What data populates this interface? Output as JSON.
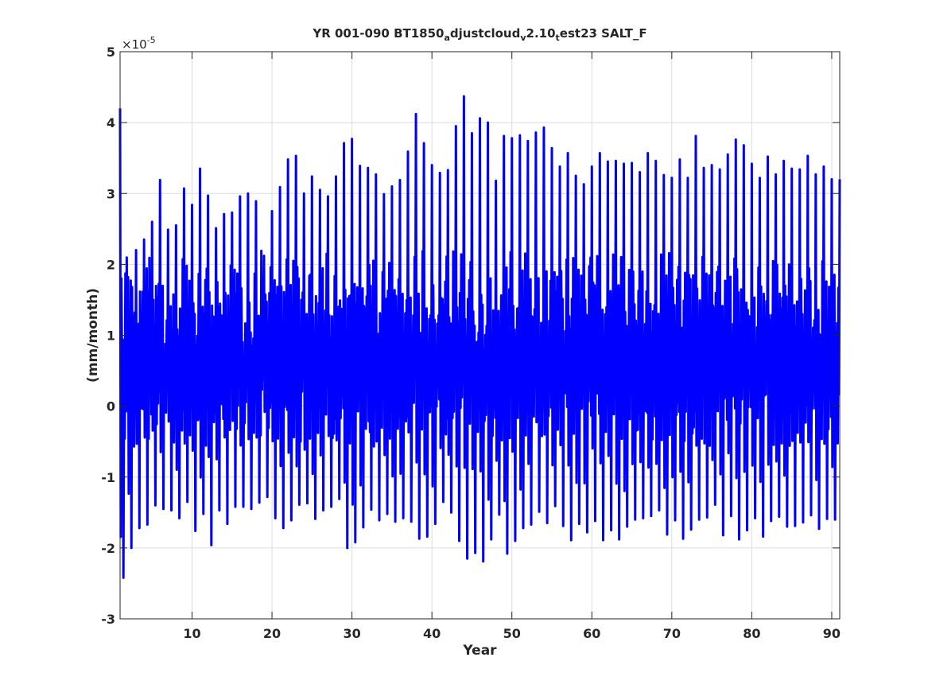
{
  "chart_data": {
    "type": "line",
    "title_parts": [
      {
        "text": "YR 001-090 BT1850",
        "sub": false
      },
      {
        "text": "a",
        "sub": true
      },
      {
        "text": "djustcloud",
        "sub": false
      },
      {
        "text": "v",
        "sub": true
      },
      {
        "text": "2.10",
        "sub": false
      },
      {
        "text": "t",
        "sub": true
      },
      {
        "text": "est23 SALT_F",
        "sub": false
      }
    ],
    "xlabel": "Year",
    "ylabel": "(mm/month)",
    "y_exponent_base": "×10",
    "y_exponent_power": "-5",
    "xlim": [
      1,
      91
    ],
    "ylim": [
      -3,
      5
    ],
    "xticks": [
      10,
      20,
      30,
      40,
      50,
      60,
      70,
      80,
      90
    ],
    "xtick_labels": [
      "10",
      "20",
      "30",
      "40",
      "50",
      "60",
      "70",
      "80",
      "90"
    ],
    "yticks": [
      -3,
      -2,
      -1,
      0,
      1,
      2,
      3,
      4,
      5
    ],
    "ytick_labels": [
      "-3",
      "-2",
      "-1",
      "0",
      "1",
      "2",
      "3",
      "4",
      "5"
    ],
    "grid": true,
    "series": [
      {
        "color": "#0000ff",
        "samples_per_year": 12,
        "annual_max": [
          4.2,
          1.82,
          2.2,
          2.35,
          2.6,
          3.19,
          2.49,
          2.55,
          3.07,
          2.84,
          3.35,
          2.97,
          2.51,
          2.71,
          2.73,
          2.96,
          3.0,
          2.89,
          2.12,
          2.75,
          3.09,
          3.48,
          3.53,
          3.0,
          3.24,
          3.05,
          2.96,
          3.24,
          3.71,
          3.77,
          3.39,
          3.36,
          3.27,
          2.99,
          3.1,
          3.19,
          3.59,
          4.12,
          3.71,
          3.4,
          3.29,
          3.33,
          3.95,
          4.37,
          3.85,
          4.06,
          4.0,
          3.18,
          3.81,
          3.78,
          3.82,
          3.74,
          3.86,
          3.93,
          3.64,
          3.38,
          3.57,
          3.25,
          3.13,
          3.38,
          3.57,
          3.45,
          3.46,
          3.42,
          3.43,
          3.3,
          3.57,
          3.46,
          3.26,
          3.22,
          3.48,
          3.22,
          3.81,
          3.36,
          3.4,
          3.34,
          3.55,
          3.76,
          3.68,
          3.42,
          3.22,
          3.52,
          3.27,
          3.46,
          3.35,
          3.34,
          3.53,
          3.27,
          3.38,
          3.2
        ],
        "annual_min": [
          -2.42,
          -2.0,
          -1.72,
          -1.67,
          -1.4,
          -1.45,
          -1.47,
          -1.58,
          -1.35,
          -1.76,
          -1.52,
          -1.96,
          -1.47,
          -1.66,
          -1.42,
          -1.42,
          -1.45,
          -1.36,
          -1.28,
          -1.58,
          -1.72,
          -1.61,
          -1.39,
          -1.37,
          -1.59,
          -1.47,
          -1.42,
          -1.31,
          -2.0,
          -1.92,
          -1.71,
          -1.46,
          -1.61,
          -1.52,
          -1.63,
          -1.58,
          -1.63,
          -1.87,
          -1.84,
          -1.66,
          -1.35,
          -1.5,
          -1.9,
          -2.15,
          -2.07,
          -2.19,
          -1.88,
          -1.53,
          -2.08,
          -1.9,
          -1.72,
          -1.67,
          -1.49,
          -1.65,
          -1.41,
          -1.69,
          -1.89,
          -1.66,
          -1.78,
          -1.62,
          -1.89,
          -1.75,
          -1.88,
          -1.7,
          -1.6,
          -1.58,
          -1.55,
          -1.47,
          -1.81,
          -1.61,
          -1.87,
          -1.74,
          -1.6,
          -1.57,
          -1.39,
          -1.82,
          -1.55,
          -1.88,
          -1.75,
          -1.58,
          -1.84,
          -1.62,
          -1.56,
          -1.7,
          -1.69,
          -1.64,
          -1.54,
          -1.73,
          -1.59,
          -1.6
        ]
      }
    ]
  }
}
